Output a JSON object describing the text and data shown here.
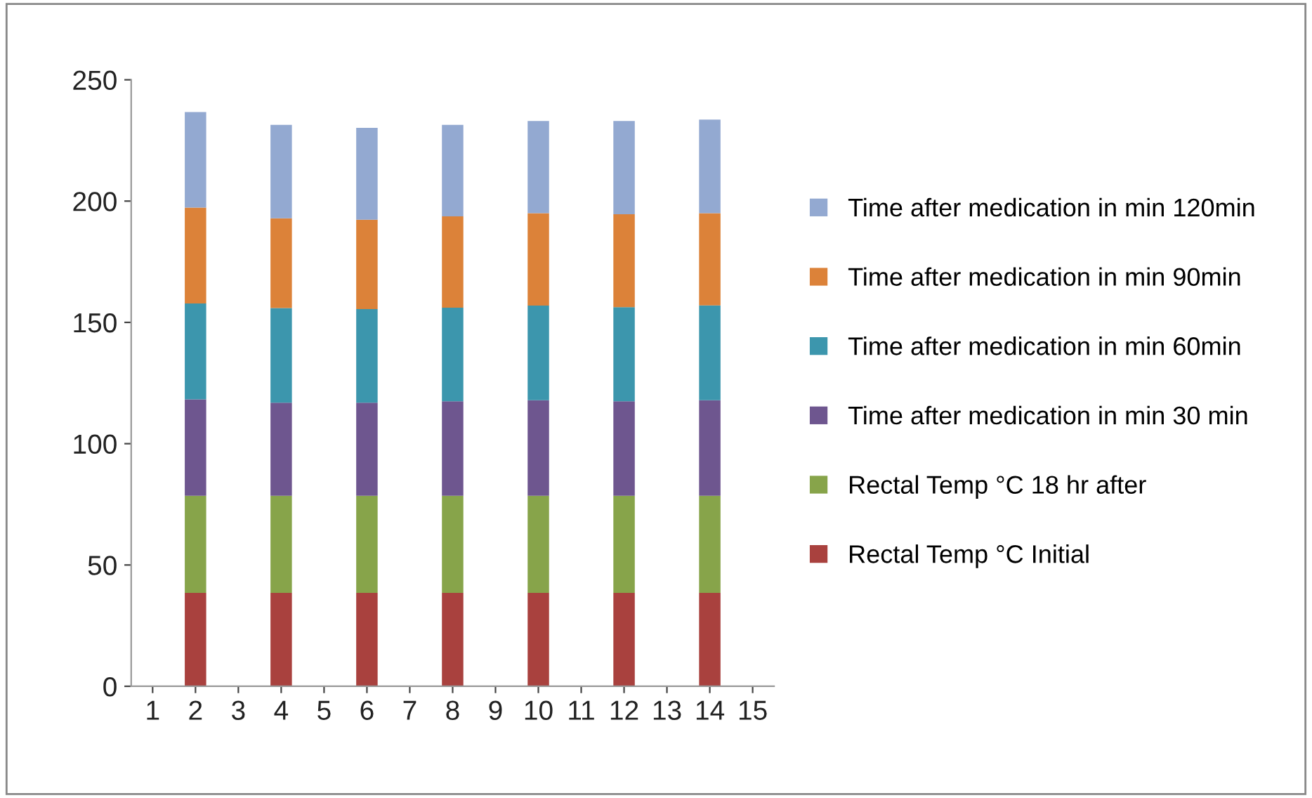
{
  "chart_data": {
    "type": "bar",
    "stacked": true,
    "categories": [
      "1",
      "2",
      "3",
      "4",
      "5",
      "6",
      "7",
      "8",
      "9",
      "10",
      "11",
      "12",
      "13",
      "14",
      "15"
    ],
    "series": [
      {
        "name": "Rectal Temp °C Initial",
        "color": "#a9413e",
        "values": [
          0,
          38.5,
          null,
          38.5,
          null,
          38.5,
          null,
          38.5,
          null,
          38.5,
          null,
          38.5,
          null,
          38.5,
          null
        ]
      },
      {
        "name": "Rectal Temp °C 18 hr after",
        "color": "#87a44a",
        "values": [
          0,
          40,
          null,
          40,
          null,
          40,
          null,
          40,
          null,
          40,
          null,
          40,
          null,
          40,
          null
        ]
      },
      {
        "name": "Time after medication in min 30 min",
        "color": "#6e568f",
        "values": [
          0,
          39.8,
          null,
          38.4,
          null,
          38.4,
          null,
          39,
          null,
          39.4,
          null,
          39,
          null,
          39.4,
          null
        ]
      },
      {
        "name": "Time after medication in min 60min",
        "color": "#3c96ad",
        "values": [
          0,
          39.5,
          null,
          39,
          null,
          38.6,
          null,
          38.6,
          null,
          39,
          null,
          38.8,
          null,
          39.1,
          null
        ]
      },
      {
        "name": "Time after medication in min 90min",
        "color": "#dc8239",
        "values": [
          0,
          39.5,
          null,
          37,
          null,
          36.8,
          null,
          37.6,
          null,
          38.1,
          null,
          38.3,
          null,
          38,
          null
        ]
      },
      {
        "name": "Time after medication in min 120min",
        "color": "#93a9d1",
        "values": [
          0,
          39.4,
          null,
          38.5,
          null,
          37.9,
          null,
          37.7,
          null,
          38,
          null,
          38.4,
          null,
          38.6,
          null
        ]
      }
    ],
    "ylim": [
      0,
      250
    ],
    "yticks": [
      0,
      50,
      100,
      150,
      200,
      250
    ],
    "grid": false,
    "legend": "right"
  }
}
